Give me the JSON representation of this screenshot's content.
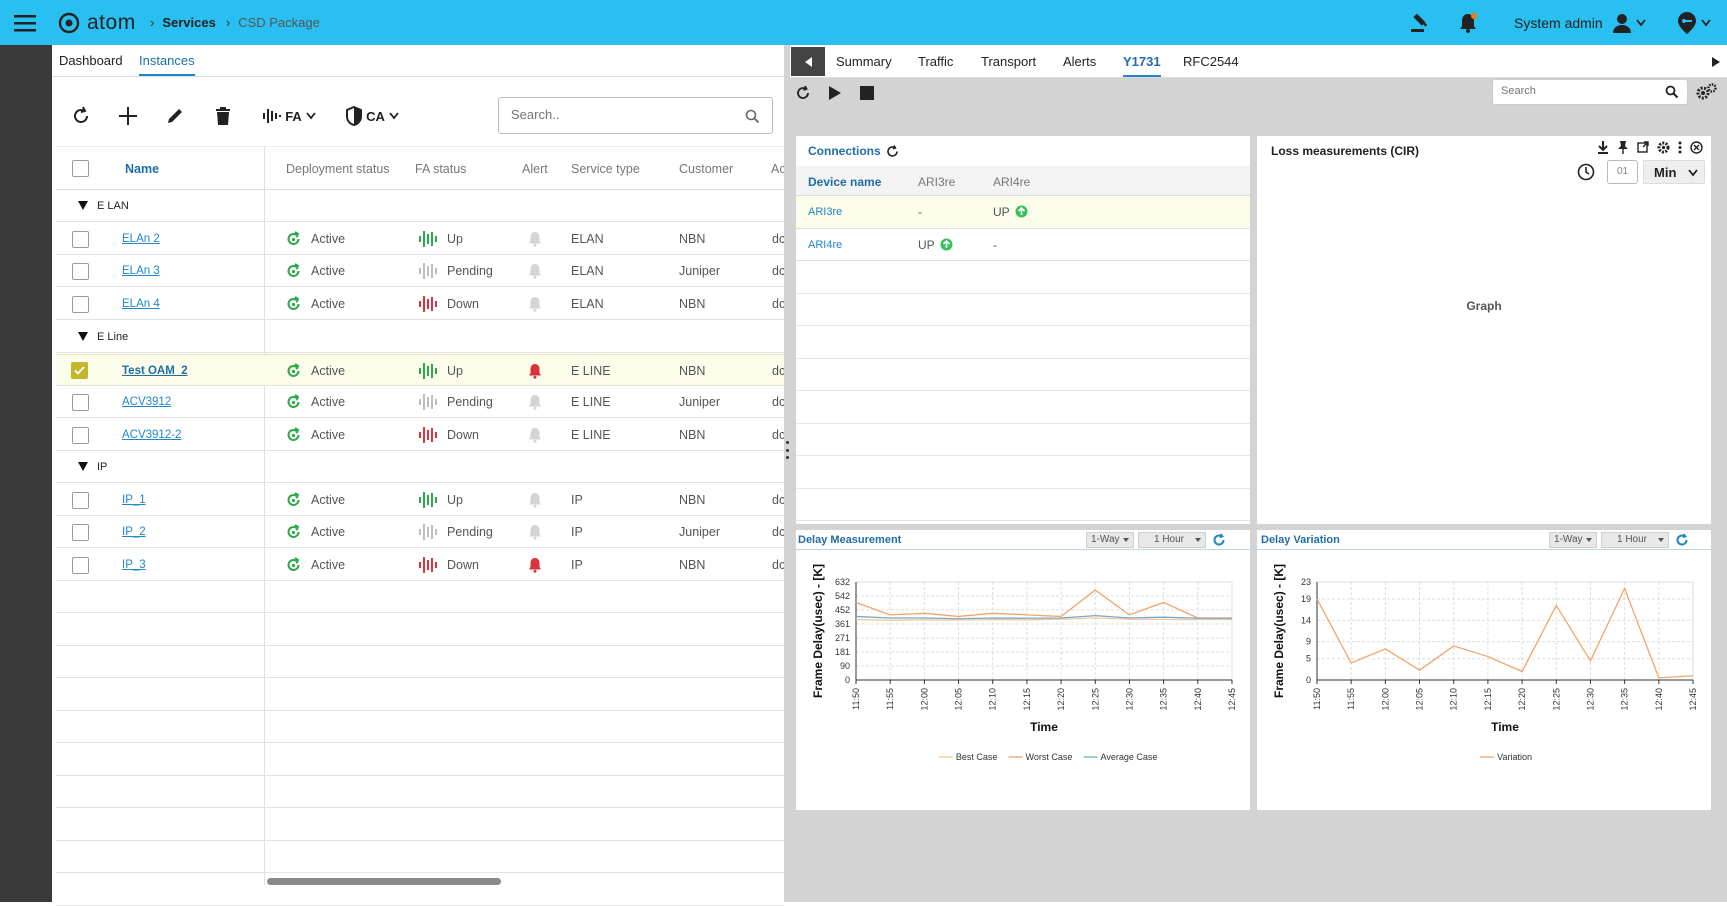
{
  "header": {
    "app_name": "atom",
    "breadcrumb": [
      "Services",
      "CSD Package"
    ],
    "user": "System admin"
  },
  "left_tabs": [
    "Dashboard",
    "Instances"
  ],
  "toolbar": {
    "fa_label": "FA",
    "ca_label": "CA",
    "search_placeholder": "Search.."
  },
  "table": {
    "columns": [
      "Name",
      "Deployment status",
      "FA status",
      "Alert",
      "Service type",
      "Customer",
      "Ac"
    ],
    "groups": [
      {
        "name": "E LAN",
        "rows": [
          {
            "name": "ELAn 2",
            "deploy": "Active",
            "fa": "Up",
            "fa_color": "#2da84a",
            "alert": false,
            "type": "ELAN",
            "customer": "NBN",
            "extra": "dc",
            "selected": false
          },
          {
            "name": "ELAn 3",
            "deploy": "Active",
            "fa": "Pending",
            "fa_color": "#bdbdbd",
            "alert": false,
            "type": "ELAN",
            "customer": "Juniper",
            "extra": "dc",
            "selected": false
          },
          {
            "name": "ELAn 4",
            "deploy": "Active",
            "fa": "Down",
            "fa_color": "#d9343b",
            "alert": false,
            "type": "ELAN",
            "customer": "NBN",
            "extra": "dc",
            "selected": false
          }
        ]
      },
      {
        "name": "E Line",
        "rows": [
          {
            "name": "Test OAM_2",
            "deploy": "Active",
            "fa": "Up",
            "fa_color": "#2da84a",
            "alert": true,
            "type": "E LINE",
            "customer": "NBN",
            "extra": "dc",
            "selected": true
          },
          {
            "name": "ACV3912",
            "deploy": "Active",
            "fa": "Pending",
            "fa_color": "#bdbdbd",
            "alert": false,
            "type": "E LINE",
            "customer": "Juniper",
            "extra": "dc",
            "selected": false
          },
          {
            "name": "ACV3912-2",
            "deploy": "Active",
            "fa": "Down",
            "fa_color": "#d9343b",
            "alert": false,
            "type": "E LINE",
            "customer": "NBN",
            "extra": "dc",
            "selected": false
          }
        ]
      },
      {
        "name": "IP",
        "rows": [
          {
            "name": "IP_1",
            "deploy": "Active",
            "fa": "Up",
            "fa_color": "#2da84a",
            "alert": false,
            "type": "IP",
            "customer": "NBN",
            "extra": "dc",
            "selected": false
          },
          {
            "name": "IP_2",
            "deploy": "Active",
            "fa": "Pending",
            "fa_color": "#bdbdbd",
            "alert": false,
            "type": "IP",
            "customer": "Juniper",
            "extra": "dc",
            "selected": false
          },
          {
            "name": "IP_3",
            "deploy": "Active",
            "fa": "Down",
            "fa_color": "#d9343b",
            "alert": true,
            "type": "IP",
            "customer": "NBN",
            "extra": "dc",
            "selected": false
          }
        ]
      }
    ]
  },
  "right_tabs": [
    "Summary",
    "Traffic",
    "Transport",
    "Alerts",
    "Y1731",
    "RFC2544"
  ],
  "right_search_placeholder": "Search",
  "connections": {
    "title": "Connections",
    "columns": [
      "Device name",
      "ARI3re",
      "ARI4re"
    ],
    "rows": [
      {
        "device": "ARI3re",
        "c1": "-",
        "c2": "UP",
        "c2_up": true
      },
      {
        "device": "ARI4re",
        "c1": "UP",
        "c1_up": true,
        "c2": "-"
      }
    ]
  },
  "loss": {
    "title": "Loss measurements (CIR)",
    "interval_value": "01",
    "unit": "Min",
    "placeholder": "Graph"
  },
  "delay_measurement": {
    "title": "Delay Measurement",
    "way": "1-Way",
    "range": "1 Hour"
  },
  "delay_variation": {
    "title": "Delay Variation",
    "way": "1-Way",
    "range": "1 Hour"
  },
  "chart_data": [
    {
      "type": "line",
      "title": "Delay Measurement",
      "xlabel": "Time",
      "ylabel": "Frame Delay(usec) - [K]",
      "categories": [
        "11:50",
        "11:55",
        "12:00",
        "12:05",
        "12:10",
        "12:15",
        "12:20",
        "12:25",
        "12:30",
        "12:35",
        "12:40",
        "12:45"
      ],
      "yticks": [
        0,
        90,
        181,
        271,
        361,
        452,
        542,
        632
      ],
      "ylim": [
        0,
        632
      ],
      "series": [
        {
          "name": "Best Case",
          "color": "#f6c79b",
          "values": [
            390,
            385,
            388,
            386,
            390,
            388,
            392,
            400,
            392,
            390,
            390,
            390
          ]
        },
        {
          "name": "Worst Case",
          "color": "#f4a46b",
          "values": [
            500,
            420,
            430,
            410,
            430,
            420,
            410,
            580,
            420,
            500,
            400,
            400
          ]
        },
        {
          "name": "Average Case",
          "color": "#7aa7c7",
          "values": [
            410,
            400,
            400,
            395,
            400,
            398,
            400,
            415,
            400,
            405,
            398,
            398
          ]
        }
      ],
      "legend": "bottom"
    },
    {
      "type": "line",
      "title": "Delay Variation",
      "xlabel": "Time",
      "ylabel": "Frame Delay(usec) - [K]",
      "categories": [
        "11:50",
        "11:55",
        "12:00",
        "12:05",
        "12:10",
        "12:15",
        "12:20",
        "12:25",
        "12:30",
        "12:35",
        "12:40",
        "12:45"
      ],
      "yticks": [
        0,
        5,
        9,
        14,
        19,
        23
      ],
      "ylim": [
        0,
        23
      ],
      "series": [
        {
          "name": "Variation",
          "color": "#f4a46b",
          "values": [
            19,
            4,
            7.3,
            2.3,
            8,
            5.5,
            2,
            17.5,
            4.5,
            21.5,
            0.5,
            1
          ]
        }
      ],
      "legend": "bottom"
    }
  ]
}
